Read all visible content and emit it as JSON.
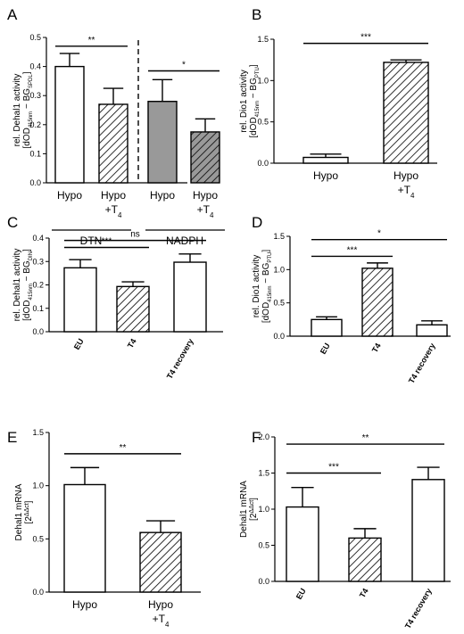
{
  "colors": {
    "white": "#ffffff",
    "gray": "#999999",
    "hatch": "#000000",
    "stroke": "#000000"
  },
  "chart_data": [
    {
      "panel": "A",
      "type": "bar",
      "ylabel_main": "rel. Dehal1 activity",
      "ylabel_sub_html": "[dOD<tspan baseline-shift='sub' font-size='6'>415nm</tspan> − BG<tspan baseline-shift='sub' font-size='6'>SPDL</tspan>]",
      "ylim": [
        0,
        0.5
      ],
      "yticks": [
        "0.0",
        "0.1",
        "0.2",
        "0.3",
        "0.4",
        "0.5"
      ],
      "categories": [
        "Hypo",
        "Hypo +T4",
        "Hypo",
        "Hypo +T4"
      ],
      "values": [
        0.4,
        0.27,
        0.28,
        0.175
      ],
      "errors": [
        0.045,
        0.055,
        0.075,
        0.045
      ],
      "fills": [
        "white",
        "hatch",
        "gray",
        "grayhatch"
      ],
      "groups": [
        "DTN",
        "NADPH"
      ],
      "significance": [
        {
          "from": 0,
          "to": 1,
          "label": "**"
        },
        {
          "from": 2,
          "to": 3,
          "label": "*"
        }
      ]
    },
    {
      "panel": "B",
      "type": "bar",
      "ylabel_main": "rel. Dio1 activity",
      "ylabel_sub_html": "[dOD<tspan baseline-shift='sub' font-size='6'>415nm</tspan> − BG<tspan baseline-shift='sub' font-size='6'>PTU</tspan>]",
      "ylim": [
        0,
        1.5
      ],
      "yticks": [
        "0.0",
        "0.5",
        "1.0",
        "1.5"
      ],
      "categories": [
        "Hypo",
        "Hypo +T4"
      ],
      "values": [
        0.07,
        1.22
      ],
      "errors": [
        0.04,
        0.03
      ],
      "fills": [
        "white",
        "hatch"
      ],
      "significance": [
        {
          "from": 0,
          "to": 1,
          "label": "***"
        }
      ]
    },
    {
      "panel": "C",
      "type": "bar",
      "ylabel_main": "rel. Dehal1 activity",
      "ylabel_sub_html": "[dOD<tspan baseline-shift='sub' font-size='6'>415nm</tspan> − BG<tspan baseline-shift='sub' font-size='6'>DIN</tspan>]",
      "ylim": [
        0,
        0.4
      ],
      "yticks": [
        "0.0",
        "0.1",
        "0.2",
        "0.3",
        "0.4"
      ],
      "categories": [
        "EU",
        "T4",
        "T4 recovery"
      ],
      "values": [
        0.273,
        0.193,
        0.297
      ],
      "errors": [
        0.035,
        0.02,
        0.035
      ],
      "fills": [
        "white",
        "hatch",
        "white"
      ],
      "significance": [
        {
          "from": 0,
          "to": 1,
          "label": "***"
        },
        {
          "from": 0,
          "to": 2,
          "label": "ns"
        }
      ]
    },
    {
      "panel": "D",
      "type": "bar",
      "ylabel_main": "rel. Dio1 activity",
      "ylabel_sub_html": "[dOD<tspan baseline-shift='sub' font-size='6'>415nm</tspan> − BG<tspan baseline-shift='sub' font-size='6'>PTU</tspan>]",
      "ylim": [
        0,
        1.5
      ],
      "yticks": [
        "0.0",
        "0.5",
        "1.0",
        "1.5"
      ],
      "categories": [
        "EU",
        "T4",
        "T4 recovery"
      ],
      "values": [
        0.25,
        1.02,
        0.17
      ],
      "errors": [
        0.04,
        0.08,
        0.06
      ],
      "fills": [
        "white",
        "hatch",
        "white"
      ],
      "significance": [
        {
          "from": 0,
          "to": 1,
          "label": "***"
        },
        {
          "from": 0,
          "to": 2,
          "label": "*"
        }
      ]
    },
    {
      "panel": "E",
      "type": "bar",
      "ylabel_main": "Dehal1 mRNA",
      "ylabel_sub_html": "[2<tspan baseline-shift='super' font-size='7'>ΔΔct</tspan>]",
      "ylim": [
        0,
        1.5
      ],
      "yticks": [
        "0.0",
        "0.5",
        "1.0",
        "1.5"
      ],
      "categories": [
        "Hypo",
        "Hypo +T4"
      ],
      "values": [
        1.01,
        0.56
      ],
      "errors": [
        0.16,
        0.11
      ],
      "fills": [
        "white",
        "hatch"
      ],
      "significance": [
        {
          "from": 0,
          "to": 1,
          "label": "**"
        }
      ]
    },
    {
      "panel": "F",
      "type": "bar",
      "ylabel_main": "Dehal1 mRNA",
      "ylabel_sub_html": "[2<tspan baseline-shift='super' font-size='7'>ΔΔct</tspan>]",
      "ylim": [
        0,
        2.0
      ],
      "yticks": [
        "0.0",
        "0.5",
        "1.0",
        "1.5",
        "2.0"
      ],
      "categories": [
        "EU",
        "T4",
        "T4 recovery"
      ],
      "values": [
        1.03,
        0.6,
        1.41
      ],
      "errors": [
        0.27,
        0.13,
        0.17
      ],
      "fills": [
        "white",
        "hatch",
        "white"
      ],
      "significance": [
        {
          "from": 0,
          "to": 1,
          "label": "***"
        },
        {
          "from": 0,
          "to": 2,
          "label": "**"
        }
      ]
    }
  ]
}
